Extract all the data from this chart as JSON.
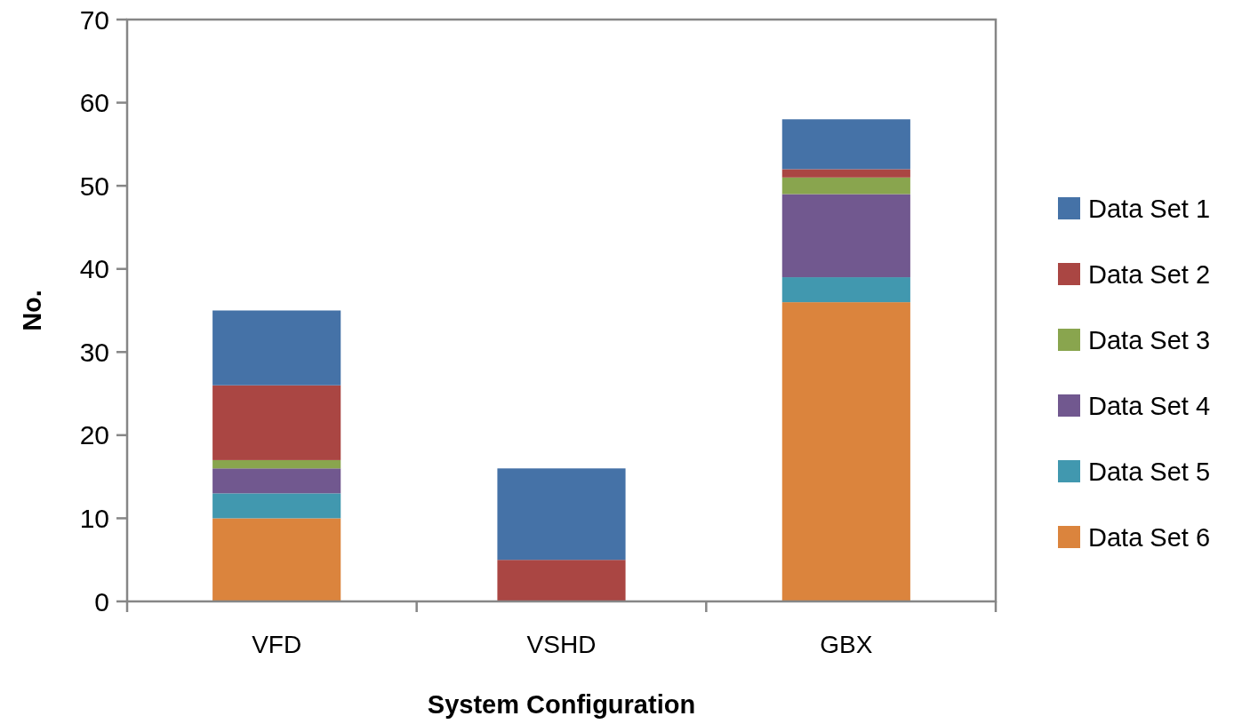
{
  "chart_data": {
    "type": "bar",
    "stacked": true,
    "xlabel": "System Configuration",
    "ylabel": "No.",
    "categories": [
      "VFD",
      "VSHD",
      "GBX"
    ],
    "series": [
      {
        "name": "Data Set 6",
        "color": "#db843d",
        "values": [
          10,
          0,
          36
        ]
      },
      {
        "name": "Data Set 5",
        "color": "#4198af",
        "values": [
          3,
          0,
          3
        ]
      },
      {
        "name": "Data Set 4",
        "color": "#71588f",
        "values": [
          3,
          0,
          10
        ]
      },
      {
        "name": "Data Set 3",
        "color": "#89a54e",
        "values": [
          1,
          0,
          2
        ]
      },
      {
        "name": "Data Set 2",
        "color": "#aa4643",
        "values": [
          9,
          5,
          1
        ]
      },
      {
        "name": "Data Set 1",
        "color": "#4572a7",
        "values": [
          9,
          11,
          6
        ]
      }
    ],
    "ylim": [
      0,
      70
    ],
    "yticks": [
      0,
      10,
      20,
      30,
      40,
      50,
      60,
      70
    ],
    "grid": false,
    "legend": "right"
  }
}
